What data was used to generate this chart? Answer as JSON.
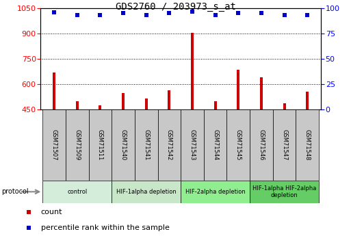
{
  "title": "GDS2760 / 203973_s_at",
  "samples": [
    "GSM71507",
    "GSM71509",
    "GSM71511",
    "GSM71540",
    "GSM71541",
    "GSM71542",
    "GSM71543",
    "GSM71544",
    "GSM71545",
    "GSM71546",
    "GSM71547",
    "GSM71548"
  ],
  "counts": [
    670,
    500,
    475,
    550,
    515,
    565,
    905,
    500,
    685,
    640,
    490,
    555
  ],
  "percentiles": [
    96,
    93,
    93,
    95,
    93,
    95,
    97,
    93,
    95,
    95,
    93,
    93
  ],
  "ylim_left": [
    450,
    1050
  ],
  "ylim_right": [
    0,
    100
  ],
  "yticks_left": [
    450,
    600,
    750,
    900,
    1050
  ],
  "yticks_right": [
    0,
    25,
    50,
    75,
    100
  ],
  "bar_color": "#cc0000",
  "dot_color": "#0000cc",
  "grid_color": "#000000",
  "protocol_groups": [
    {
      "label": "control",
      "start": 0,
      "end": 3,
      "color": "#d4edda"
    },
    {
      "label": "HIF-1alpha depletion",
      "start": 3,
      "end": 6,
      "color": "#c8e6c8"
    },
    {
      "label": "HIF-2alpha depletion",
      "start": 6,
      "end": 9,
      "color": "#90ee90"
    },
    {
      "label": "HIF-1alpha HIF-2alpha\ndepletion",
      "start": 9,
      "end": 12,
      "color": "#66cc66"
    }
  ],
  "background_color": "#ffffff",
  "tick_bar_bg": "#c8c8c8",
  "title_fontsize": 10,
  "tick_fontsize": 8,
  "bar_width": 0.12,
  "dot_size": 5
}
